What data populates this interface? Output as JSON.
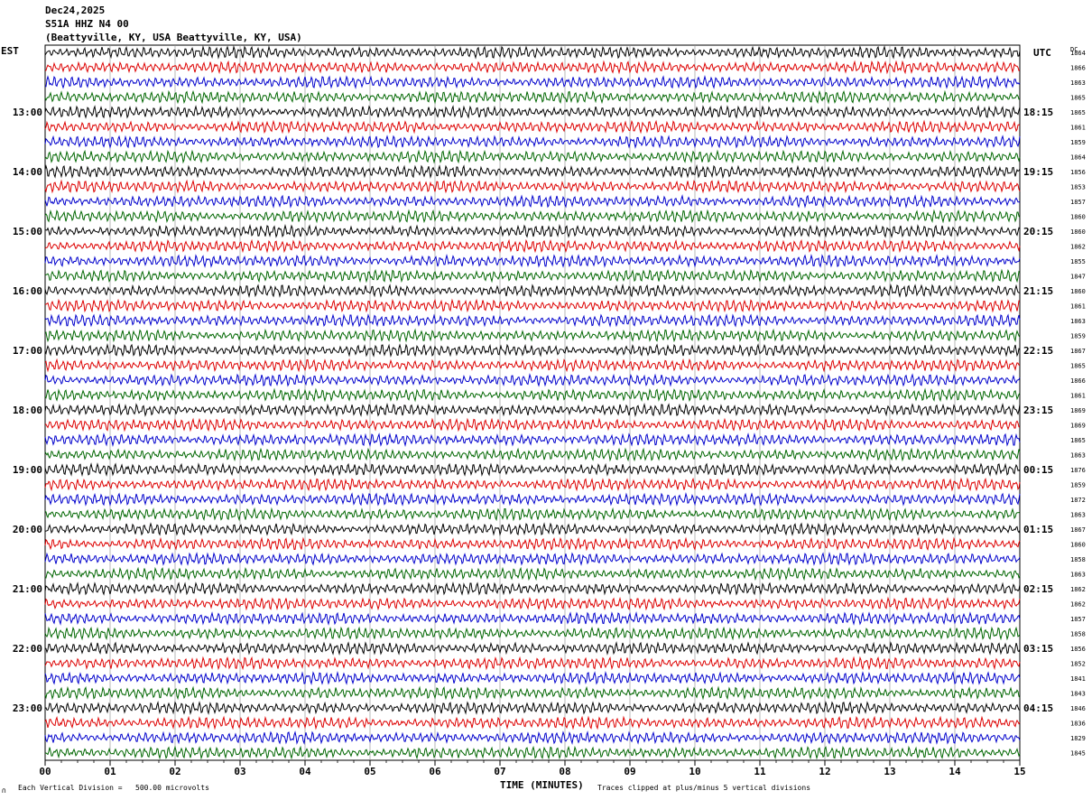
{
  "header": {
    "date": "Dec24,2025",
    "station": "S51A HHZ N4 00",
    "location": "(Beattyville, KY, USA Beattyville, KY, USA)"
  },
  "labels": {
    "left_timezone": "EST",
    "right_timezone": "UTC",
    "dc_header": "DC",
    "x_axis_title": "TIME (MINUTES)",
    "scale_note": "Each Vertical Division =   500.00 microvolts",
    "clip_note": "Traces clipped at plus/minus 5 vertical divisions",
    "corner_mark": "∩"
  },
  "chart_data": {
    "type": "line",
    "title": "",
    "xlabel": "TIME (MINUTES)",
    "ylabel": "",
    "xlim": [
      0,
      15
    ],
    "x_ticks": [
      "00",
      "01",
      "02",
      "03",
      "04",
      "05",
      "06",
      "07",
      "08",
      "09",
      "10",
      "11",
      "12",
      "13",
      "14",
      "15"
    ],
    "left_hour_labels": [
      "13:00",
      "14:00",
      "15:00",
      "16:00",
      "17:00",
      "18:00",
      "19:00",
      "20:00",
      "21:00",
      "22:00",
      "23:00"
    ],
    "right_hour_labels": [
      "UTC",
      "18:15",
      "19:15",
      "20:15",
      "21:15",
      "22:15",
      "23:15",
      "00:15",
      "01:15",
      "02:15",
      "03:15",
      "04:15"
    ],
    "trace_colors": [
      "#000000",
      "#dd0000",
      "#0000cc",
      "#006600"
    ],
    "trace_count": 48,
    "dc_offsets": [
      1864,
      1866,
      1863,
      1865,
      1865,
      1861,
      1859,
      1864,
      1856,
      1853,
      1857,
      1860,
      1860,
      1862,
      1855,
      1847,
      1860,
      1861,
      1863,
      1859,
      1867,
      1865,
      1866,
      1861,
      1869,
      1869,
      1865,
      1863,
      1876,
      1859,
      1872,
      1863,
      1867,
      1860,
      1858,
      1863,
      1862,
      1862,
      1857,
      1858,
      1856,
      1852,
      1841,
      1843,
      1846,
      1836,
      1829,
      1845
    ],
    "vertical_division_microvolts": 500.0,
    "grid": true,
    "legend": "none"
  }
}
